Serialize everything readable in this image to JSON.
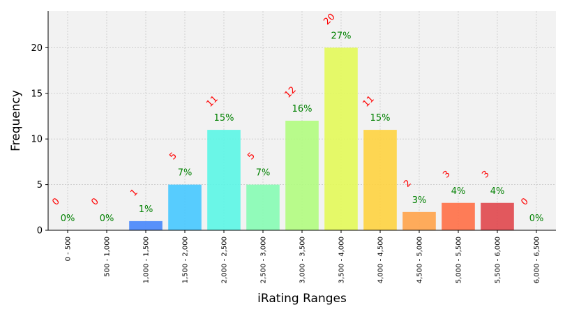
{
  "chart_data": {
    "type": "bar",
    "xlabel": "iRating Ranges",
    "ylabel": "Frequency",
    "ylim": [
      0,
      24
    ],
    "yticks": [
      0,
      5,
      10,
      15,
      20
    ],
    "grid": true,
    "categories": [
      "0 - 500",
      "500 - 1,000",
      "1,000 - 1,500",
      "1,500 - 2,000",
      "2,000 - 2,500",
      "2,500 - 3,000",
      "3,000 - 3,500",
      "3,500 - 4,000",
      "4,000 - 4,500",
      "4,500 - 5,000",
      "5,000 - 5,500",
      "5,500 - 6,000",
      "6,000 - 6,500"
    ],
    "values": [
      0,
      0,
      1,
      5,
      11,
      5,
      12,
      20,
      11,
      2,
      3,
      3,
      0
    ],
    "count_labels": [
      "0",
      "0",
      "1",
      "5",
      "11",
      "5",
      "12",
      "20",
      "11",
      "2",
      "3",
      "3",
      "0"
    ],
    "percent_labels": [
      "0%",
      "0%",
      "1%",
      "7%",
      "15%",
      "7%",
      "16%",
      "27%",
      "15%",
      "3%",
      "4%",
      "4%",
      "0%"
    ],
    "colors": [
      "#30123b",
      "#4145ab",
      "#4686fb",
      "#46c8ff",
      "#5bf6e6",
      "#86fcb4",
      "#b1fc7f",
      "#e3f959",
      "#fed340",
      "#ffa34a",
      "#ff6f46",
      "#e0474c",
      "#7a0403"
    ],
    "plot_background": "#f2f2f2",
    "count_label_color": "#ff0000",
    "percent_label_color": "#008000"
  }
}
